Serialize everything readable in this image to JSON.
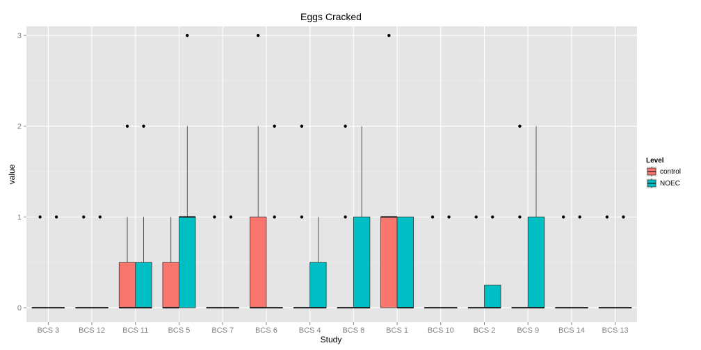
{
  "chart_data": {
    "type": "boxplot",
    "title": "Eggs Cracked",
    "xlabel": "Study",
    "ylabel": "value",
    "ylim": [
      -0.16,
      3.1
    ],
    "yticks": [
      0,
      1,
      2,
      3
    ],
    "grid": true,
    "legend": {
      "title": "Level",
      "position": "right",
      "entries": [
        "control",
        "NOEC"
      ]
    },
    "colors": {
      "control": "#f8766d",
      "NOEC": "#00bfc4",
      "panel": "#e5e5e5",
      "grid_major": "#ffffff",
      "grid_minor": "#f2f2f2"
    },
    "categories": [
      "BCS 3",
      "BCS 12",
      "BCS 11",
      "BCS 5",
      "BCS 7",
      "BCS 6",
      "BCS 4",
      "BCS 8",
      "BCS 1",
      "BCS 10",
      "BCS 2",
      "BCS 9",
      "BCS 14",
      "BCS 13"
    ],
    "series": [
      {
        "name": "control",
        "boxes": [
          {
            "q1": 0,
            "median": 0,
            "q3": 0,
            "whisker_low": 0,
            "whisker_high": 0,
            "outliers": [
              1
            ]
          },
          {
            "q1": 0,
            "median": 0,
            "q3": 0,
            "whisker_low": 0,
            "whisker_high": 0,
            "outliers": [
              1
            ]
          },
          {
            "q1": 0,
            "median": 0,
            "q3": 0.5,
            "whisker_low": 0,
            "whisker_high": 1,
            "outliers": [
              2
            ]
          },
          {
            "q1": 0,
            "median": 0,
            "q3": 0.5,
            "whisker_low": 0,
            "whisker_high": 1,
            "outliers": []
          },
          {
            "q1": 0,
            "median": 0,
            "q3": 0,
            "whisker_low": 0,
            "whisker_high": 0,
            "outliers": [
              1
            ]
          },
          {
            "q1": 0,
            "median": 0,
            "q3": 1,
            "whisker_low": 0,
            "whisker_high": 2,
            "outliers": [
              3
            ]
          },
          {
            "q1": 0,
            "median": 0,
            "q3": 0,
            "whisker_low": 0,
            "whisker_high": 0,
            "outliers": [
              1,
              2
            ]
          },
          {
            "q1": 0,
            "median": 0,
            "q3": 0,
            "whisker_low": 0,
            "whisker_high": 0,
            "outliers": [
              1,
              2
            ]
          },
          {
            "q1": 0,
            "median": 1,
            "q3": 1,
            "whisker_low": 0,
            "whisker_high": 1,
            "outliers": [
              3
            ]
          },
          {
            "q1": 0,
            "median": 0,
            "q3": 0,
            "whisker_low": 0,
            "whisker_high": 0,
            "outliers": [
              1
            ]
          },
          {
            "q1": 0,
            "median": 0,
            "q3": 0,
            "whisker_low": 0,
            "whisker_high": 0,
            "outliers": [
              1
            ]
          },
          {
            "q1": 0,
            "median": 0,
            "q3": 0,
            "whisker_low": 0,
            "whisker_high": 0,
            "outliers": [
              1,
              2
            ]
          },
          {
            "q1": 0,
            "median": 0,
            "q3": 0,
            "whisker_low": 0,
            "whisker_high": 0,
            "outliers": [
              1
            ]
          },
          {
            "q1": 0,
            "median": 0,
            "q3": 0,
            "whisker_low": 0,
            "whisker_high": 0,
            "outliers": [
              1
            ]
          }
        ]
      },
      {
        "name": "NOEC",
        "boxes": [
          {
            "q1": 0,
            "median": 0,
            "q3": 0,
            "whisker_low": 0,
            "whisker_high": 0,
            "outliers": [
              1
            ]
          },
          {
            "q1": 0,
            "median": 0,
            "q3": 0,
            "whisker_low": 0,
            "whisker_high": 0,
            "outliers": [
              1
            ]
          },
          {
            "q1": 0,
            "median": 0,
            "q3": 0.5,
            "whisker_low": 0,
            "whisker_high": 1,
            "outliers": [
              2
            ]
          },
          {
            "q1": 0,
            "median": 1,
            "q3": 1,
            "whisker_low": 0,
            "whisker_high": 2,
            "outliers": [
              3
            ]
          },
          {
            "q1": 0,
            "median": 0,
            "q3": 0,
            "whisker_low": 0,
            "whisker_high": 0,
            "outliers": [
              1
            ]
          },
          {
            "q1": 0,
            "median": 0,
            "q3": 0,
            "whisker_low": 0,
            "whisker_high": 0,
            "outliers": [
              1,
              2
            ]
          },
          {
            "q1": 0,
            "median": 0,
            "q3": 0.5,
            "whisker_low": 0,
            "whisker_high": 1,
            "outliers": []
          },
          {
            "q1": 0,
            "median": 0,
            "q3": 1,
            "whisker_low": 0,
            "whisker_high": 2,
            "outliers": []
          },
          {
            "q1": 0,
            "median": 0,
            "q3": 1,
            "whisker_low": 0,
            "whisker_high": 1,
            "outliers": []
          },
          {
            "q1": 0,
            "median": 0,
            "q3": 0,
            "whisker_low": 0,
            "whisker_high": 0,
            "outliers": [
              1
            ]
          },
          {
            "q1": 0,
            "median": 0,
            "q3": 0.25,
            "whisker_low": 0,
            "whisker_high": 0.25,
            "outliers": [
              1
            ]
          },
          {
            "q1": 0,
            "median": 0,
            "q3": 1,
            "whisker_low": 0,
            "whisker_high": 2,
            "outliers": []
          },
          {
            "q1": 0,
            "median": 0,
            "q3": 0,
            "whisker_low": 0,
            "whisker_high": 0,
            "outliers": [
              1
            ]
          },
          {
            "q1": 0,
            "median": 0,
            "q3": 0,
            "whisker_low": 0,
            "whisker_high": 0,
            "outliers": [
              1
            ]
          }
        ]
      }
    ]
  }
}
